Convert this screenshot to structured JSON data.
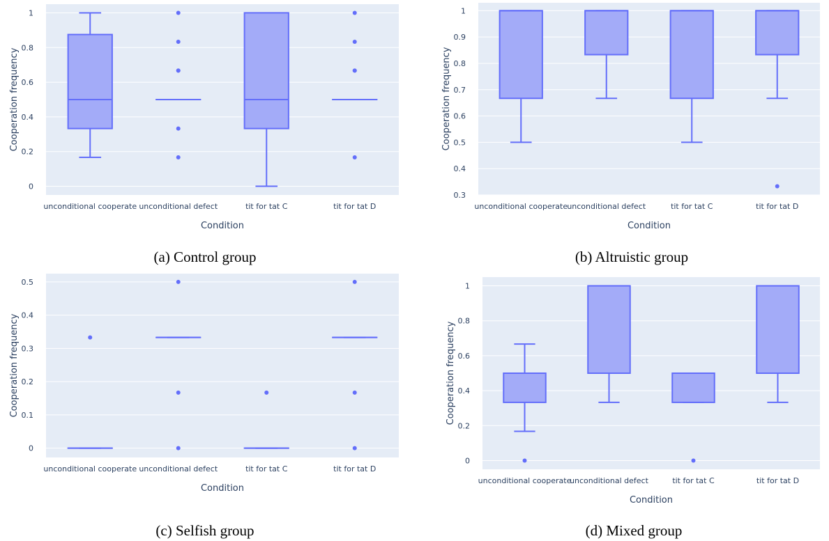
{
  "chart_data": [
    {
      "type": "box",
      "caption": "(a) Control group",
      "xlabel": "Condition",
      "ylabel": "Cooperation frequency",
      "categories": [
        "unconditional cooperate",
        "unconditional defect",
        "tit for tat C",
        "tit for tat D"
      ],
      "ylim": [
        -0.05,
        1.05
      ],
      "yticks": [
        0,
        0.2,
        0.4,
        0.6,
        0.8,
        1
      ],
      "ytick_labels": [
        "0",
        "0.2",
        "0.4",
        "0.6",
        "0.8",
        "1"
      ],
      "grid": true,
      "boxes": [
        {
          "whisker_low": 0.167,
          "q1": 0.333,
          "median": 0.5,
          "q3": 0.875,
          "whisker_high": 1.0,
          "outliers": []
        },
        {
          "whisker_low": 0.5,
          "q1": 0.5,
          "median": 0.5,
          "q3": 0.5,
          "whisker_high": 0.5,
          "outliers": [
            0.167,
            0.333,
            0.667,
            0.667,
            0.833,
            1.0
          ]
        },
        {
          "whisker_low": 0.0,
          "q1": 0.333,
          "median": 0.5,
          "q3": 1.0,
          "whisker_high": 1.0,
          "outliers": []
        },
        {
          "whisker_low": 0.5,
          "q1": 0.5,
          "median": 0.5,
          "q3": 0.5,
          "whisker_high": 0.5,
          "outliers": [
            0.167,
            0.667,
            0.667,
            0.833,
            1.0
          ]
        }
      ]
    },
    {
      "type": "box",
      "caption": "(b) Altruistic group",
      "xlabel": "Condition",
      "ylabel": "Cooperation frequency",
      "categories": [
        "unconditional cooperate",
        "unconditional defect",
        "tit for tat C",
        "tit for tat D"
      ],
      "ylim": [
        0.3,
        1.03
      ],
      "yticks": [
        0.3,
        0.4,
        0.5,
        0.6,
        0.7,
        0.8,
        0.9,
        1
      ],
      "ytick_labels": [
        "0.3",
        "0.4",
        "0.5",
        "0.6",
        "0.7",
        "0.8",
        "0.9",
        "1"
      ],
      "grid": true,
      "boxes": [
        {
          "whisker_low": 0.5,
          "q1": 0.667,
          "median": 1.0,
          "q3": 1.0,
          "whisker_high": 1.0,
          "outliers": []
        },
        {
          "whisker_low": 0.667,
          "q1": 0.833,
          "median": 1.0,
          "q3": 1.0,
          "whisker_high": 1.0,
          "outliers": []
        },
        {
          "whisker_low": 0.5,
          "q1": 0.667,
          "median": 1.0,
          "q3": 1.0,
          "whisker_high": 1.0,
          "outliers": []
        },
        {
          "whisker_low": 0.667,
          "q1": 0.833,
          "median": 1.0,
          "q3": 1.0,
          "whisker_high": 1.0,
          "outliers": [
            0.333
          ]
        }
      ]
    },
    {
      "type": "box",
      "caption": "(c) Selfish group",
      "xlabel": "Condition",
      "ylabel": "Cooperation frequency",
      "categories": [
        "unconditional cooperate",
        "unconditional defect",
        "tit for tat C",
        "tit for tat D"
      ],
      "ylim": [
        -0.028,
        0.525
      ],
      "yticks": [
        0,
        0.1,
        0.2,
        0.3,
        0.4,
        0.5
      ],
      "ytick_labels": [
        "0",
        "0.1",
        "0.2",
        "0.3",
        "0.4",
        "0.5"
      ],
      "grid": true,
      "boxes": [
        {
          "whisker_low": 0,
          "q1": 0,
          "median": 0,
          "q3": 0,
          "whisker_high": 0,
          "outliers": [
            0.333
          ]
        },
        {
          "whisker_low": 0.333,
          "q1": 0.333,
          "median": 0.333,
          "q3": 0.333,
          "whisker_high": 0.333,
          "outliers": [
            0,
            0.167,
            0.5
          ]
        },
        {
          "whisker_low": 0,
          "q1": 0,
          "median": 0,
          "q3": 0,
          "whisker_high": 0,
          "outliers": [
            0.167
          ]
        },
        {
          "whisker_low": 0.333,
          "q1": 0.333,
          "median": 0.333,
          "q3": 0.333,
          "whisker_high": 0.333,
          "outliers": [
            0,
            0.167,
            0.5
          ]
        }
      ]
    },
    {
      "type": "box",
      "caption": "(d) Mixed group",
      "xlabel": "Condition",
      "ylabel": "Cooperation frequency",
      "categories": [
        "unconditional cooperate",
        "unconditional defect",
        "tit for tat C",
        "tit for tat D"
      ],
      "ylim": [
        -0.05,
        1.05
      ],
      "yticks": [
        0,
        0.2,
        0.4,
        0.6,
        0.8,
        1
      ],
      "ytick_labels": [
        "0",
        "0.2",
        "0.4",
        "0.6",
        "0.8",
        "1"
      ],
      "grid": true,
      "boxes": [
        {
          "whisker_low": 0.167,
          "q1": 0.333,
          "median": 0.5,
          "q3": 0.5,
          "whisker_high": 0.667,
          "outliers": [
            0
          ]
        },
        {
          "whisker_low": 0.333,
          "q1": 0.5,
          "median": 1.0,
          "q3": 1.0,
          "whisker_high": 1.0,
          "outliers": []
        },
        {
          "whisker_low": 0.333,
          "q1": 0.333,
          "median": 0.5,
          "q3": 0.5,
          "whisker_high": 0.5,
          "outliers": [
            0
          ]
        },
        {
          "whisker_low": 0.333,
          "q1": 0.5,
          "median": 1.0,
          "q3": 1.0,
          "whisker_high": 1.0,
          "outliers": []
        }
      ]
    }
  ],
  "colors": {
    "plot_bg": "#e5ecf6",
    "grid": "#ffffff",
    "box_fill": "#a3abf8",
    "box_line": "#636efa",
    "outlier": "#636efa",
    "axis_text": "#2a3f5f"
  }
}
